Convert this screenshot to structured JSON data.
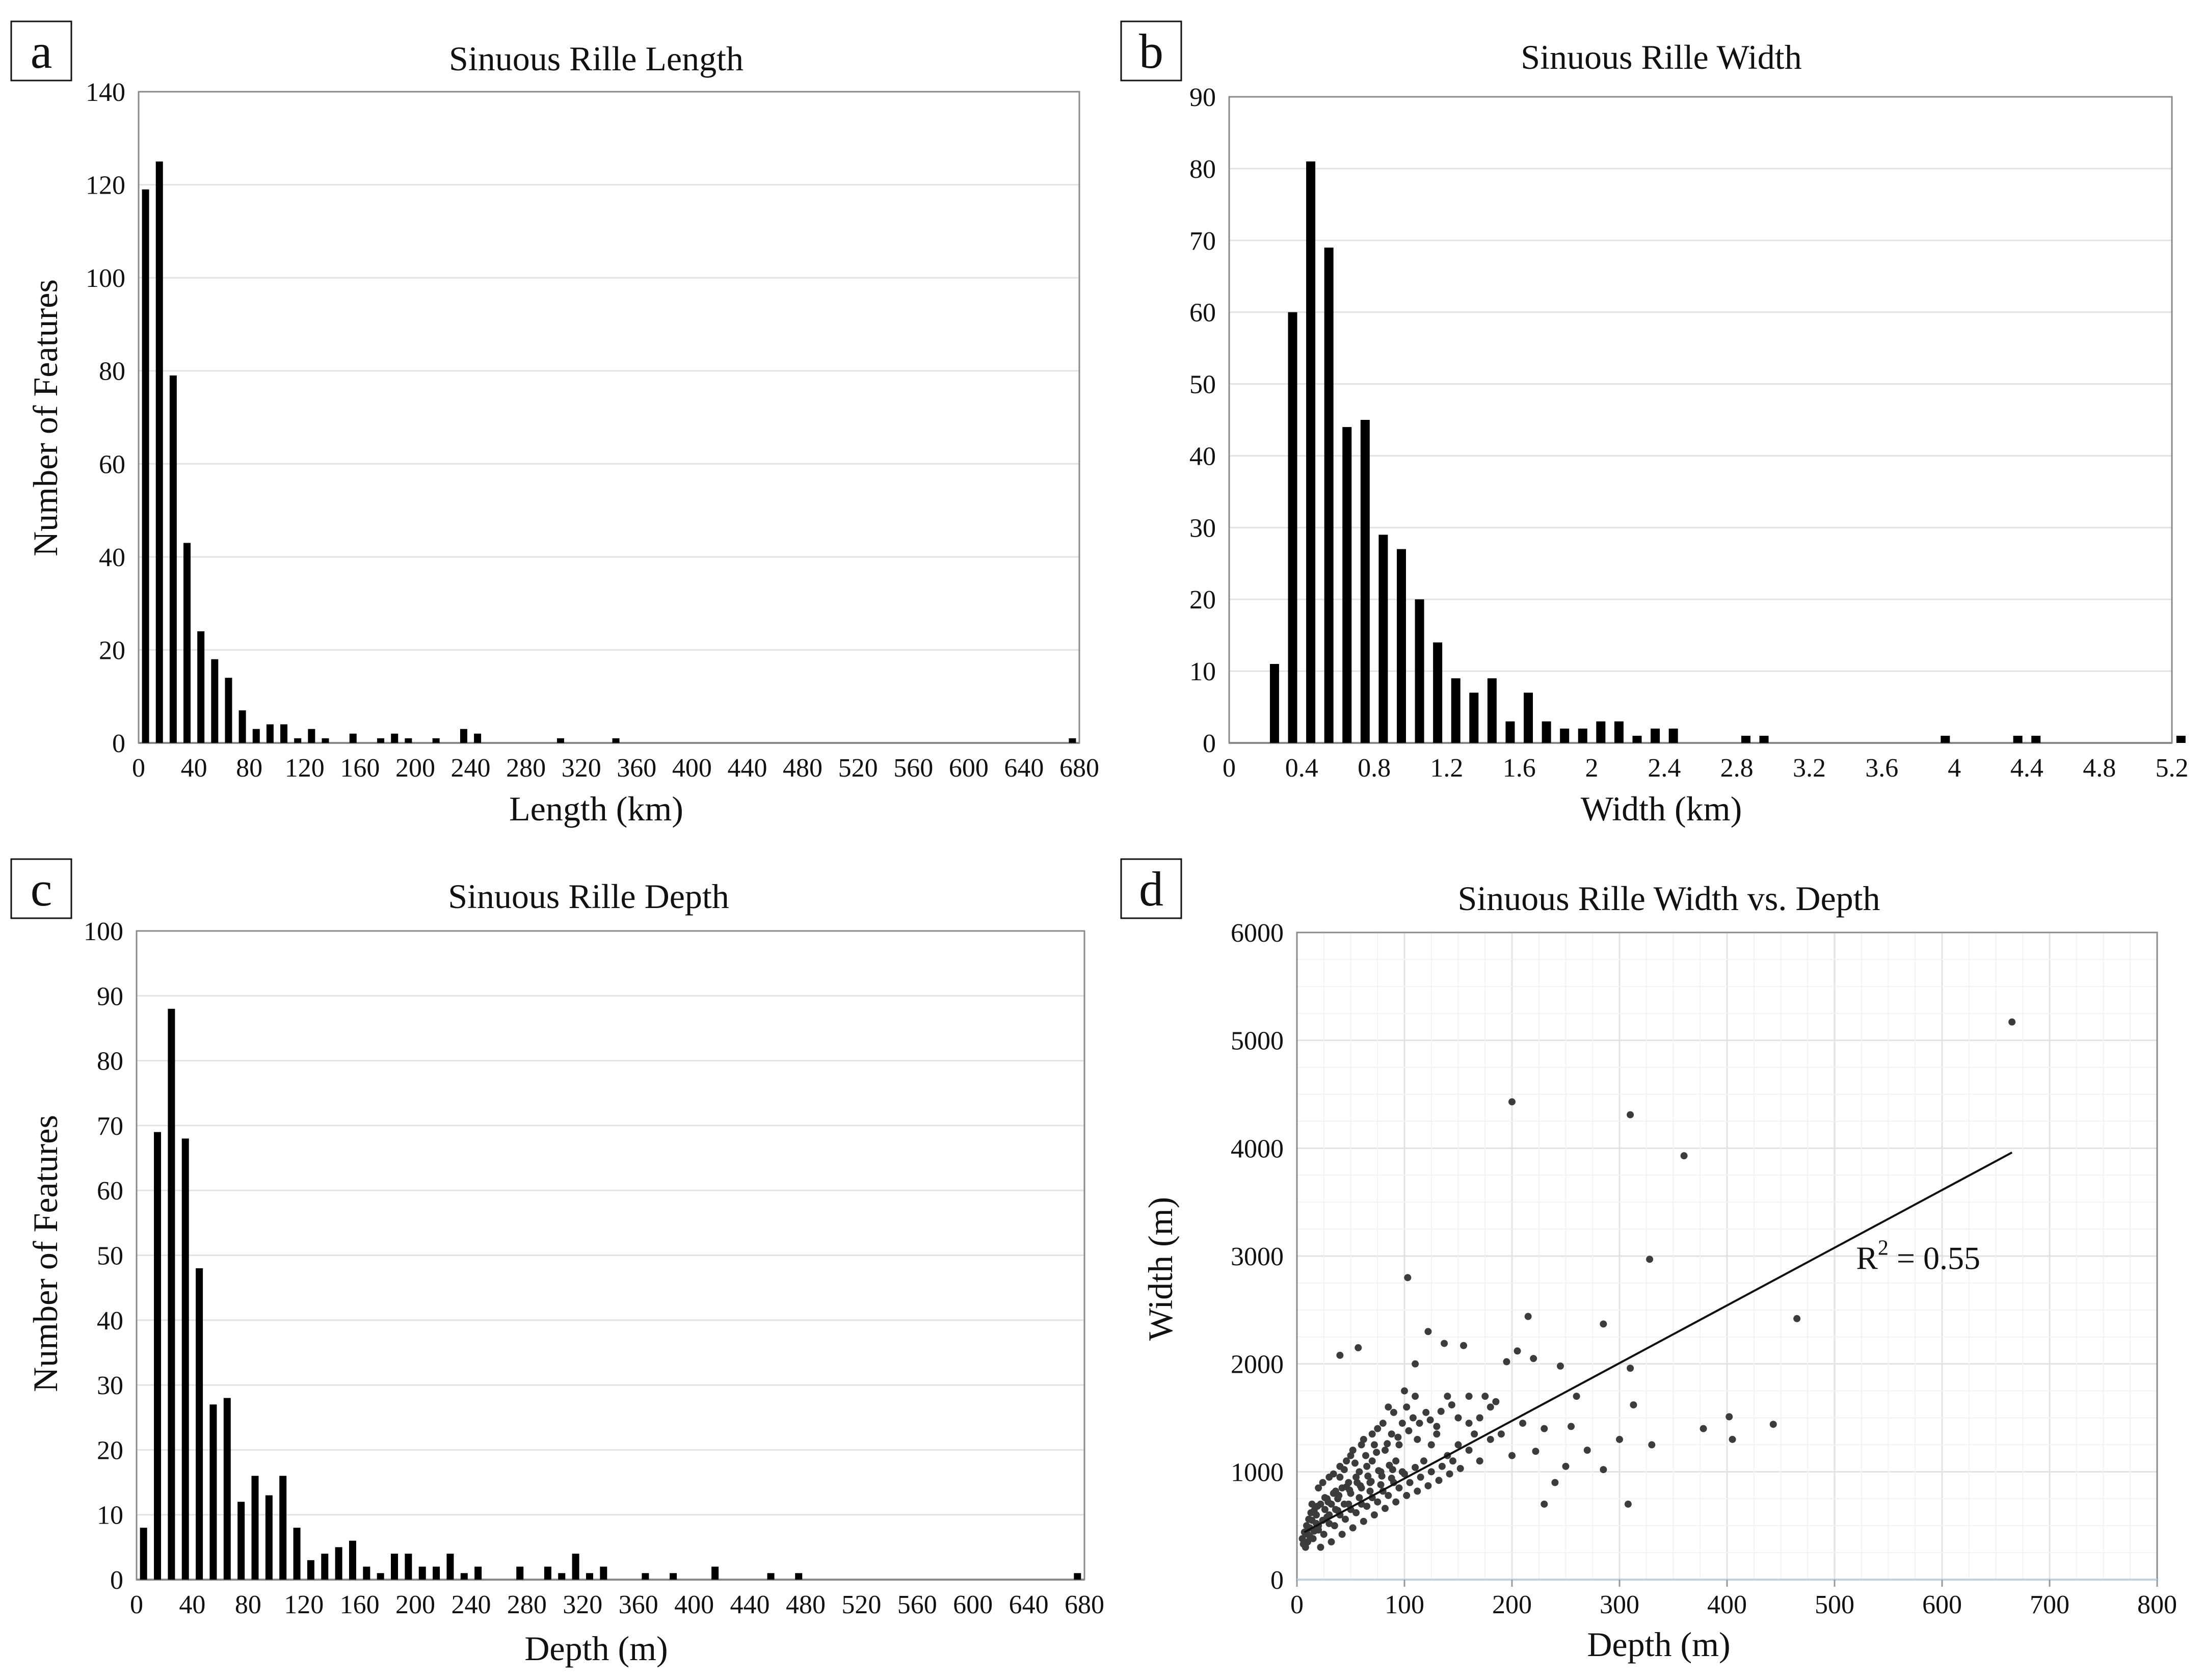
{
  "figure": {
    "description_free": true
  },
  "chart_data": [
    {
      "panel": "a",
      "type": "bar",
      "title": "Sinuous Rille Length",
      "xlabel": "Length (km)",
      "ylabel": "Number of Features",
      "xlim": [
        0,
        680
      ],
      "ylim": [
        0,
        140
      ],
      "xticks": [
        0,
        40,
        80,
        120,
        160,
        200,
        240,
        280,
        320,
        360,
        400,
        440,
        480,
        520,
        560,
        600,
        640,
        680
      ],
      "yticks": [
        0,
        20,
        40,
        60,
        80,
        100,
        120,
        140
      ],
      "grid": true,
      "bin_width": 10,
      "x": [
        5,
        15,
        25,
        35,
        45,
        55,
        65,
        75,
        85,
        95,
        105,
        115,
        125,
        135,
        155,
        175,
        185,
        195,
        215,
        235,
        245,
        305,
        345,
        675
      ],
      "values": [
        119,
        125,
        79,
        43,
        24,
        18,
        14,
        7,
        3,
        4,
        4,
        1,
        3,
        1,
        2,
        1,
        2,
        1,
        1,
        3,
        2,
        1,
        1,
        1
      ]
    },
    {
      "panel": "b",
      "type": "bar",
      "title": "Sinuous Rille Width",
      "xlabel": "Width (km)",
      "ylabel": "",
      "xlim": [
        0,
        5.2
      ],
      "ylim": [
        0,
        90
      ],
      "xticks": [
        "0",
        "0.4",
        "0.8",
        "1.2",
        "1.6",
        "2",
        "2.4",
        "2.8",
        "3.2",
        "3.6",
        "4",
        "4.4",
        "4.8",
        "5.2"
      ],
      "yticks": [
        0,
        10,
        20,
        30,
        40,
        50,
        60,
        70,
        80,
        90
      ],
      "grid": true,
      "bin_width": 0.1,
      "x": [
        0.25,
        0.35,
        0.45,
        0.55,
        0.65,
        0.75,
        0.85,
        0.95,
        1.05,
        1.15,
        1.25,
        1.35,
        1.45,
        1.55,
        1.65,
        1.75,
        1.85,
        1.95,
        2.05,
        2.15,
        2.25,
        2.35,
        2.45,
        2.85,
        2.95,
        3.95,
        4.35,
        4.45,
        5.25
      ],
      "values": [
        11,
        60,
        81,
        69,
        44,
        45,
        29,
        27,
        20,
        14,
        9,
        7,
        9,
        3,
        7,
        3,
        2,
        2,
        3,
        3,
        1,
        2,
        2,
        1,
        1,
        1,
        1,
        1,
        1
      ]
    },
    {
      "panel": "c",
      "type": "bar",
      "title": "Sinuous Rille Depth",
      "xlabel": "Depth (m)",
      "ylabel": "Number of Features",
      "xlim": [
        0,
        680
      ],
      "ylim": [
        0,
        100
      ],
      "xticks": [
        0,
        40,
        80,
        120,
        160,
        200,
        240,
        280,
        320,
        360,
        400,
        440,
        480,
        520,
        560,
        600,
        640,
        680
      ],
      "yticks": [
        0,
        10,
        20,
        30,
        40,
        50,
        60,
        70,
        80,
        90,
        100
      ],
      "grid": true,
      "bin_width": 10,
      "x": [
        5,
        15,
        25,
        35,
        45,
        55,
        65,
        75,
        85,
        95,
        105,
        115,
        125,
        135,
        145,
        155,
        165,
        175,
        185,
        195,
        205,
        215,
        225,
        235,
        245,
        255,
        275,
        295,
        305,
        315,
        325,
        335,
        365,
        385,
        415,
        455,
        475,
        675
      ],
      "values": [
        8,
        69,
        88,
        68,
        48,
        27,
        28,
        12,
        16,
        13,
        16,
        8,
        3,
        4,
        5,
        6,
        2,
        1,
        4,
        4,
        2,
        2,
        4,
        1,
        2,
        0,
        2,
        2,
        1,
        4,
        1,
        2,
        1,
        1,
        2,
        1,
        1,
        1
      ]
    },
    {
      "panel": "d",
      "type": "scatter",
      "title": "Sinuous Rille Width vs. Depth",
      "xlabel": "Depth (m)",
      "ylabel": "Width (m)",
      "xlim": [
        0,
        800
      ],
      "ylim": [
        0,
        6000
      ],
      "xticks": [
        0,
        100,
        200,
        300,
        400,
        500,
        600,
        700,
        800
      ],
      "yticks": [
        0,
        1000,
        2000,
        3000,
        4000,
        5000,
        6000
      ],
      "grid": true,
      "trendline": {
        "x": [
          7,
          665
        ],
        "y": [
          440,
          3960
        ]
      },
      "annotation": {
        "text": "R",
        "superscript": "2",
        "suffix": " = 0.55",
        "x": 520,
        "y": 2880
      },
      "points": [
        [
          200,
          4430
        ],
        [
          310,
          4310
        ],
        [
          360,
          3930
        ],
        [
          665,
          5170
        ],
        [
          328,
          2970
        ],
        [
          103,
          2800
        ],
        [
          465,
          2420
        ],
        [
          215,
          2440
        ],
        [
          285,
          2370
        ],
        [
          57,
          2150
        ],
        [
          137,
          2190
        ],
        [
          155,
          2170
        ],
        [
          40,
          2080
        ],
        [
          205,
          2120
        ],
        [
          220,
          2050
        ],
        [
          245,
          1980
        ],
        [
          195,
          2020
        ],
        [
          122,
          2300
        ],
        [
          110,
          2000
        ],
        [
          310,
          1960
        ],
        [
          313,
          1620
        ],
        [
          402,
          1510
        ],
        [
          443,
          1440
        ],
        [
          405,
          1300
        ],
        [
          378,
          1400
        ],
        [
          308,
          700
        ],
        [
          330,
          1250
        ],
        [
          300,
          1300
        ],
        [
          285,
          1020
        ],
        [
          230,
          700
        ],
        [
          250,
          1050
        ],
        [
          270,
          1200
        ],
        [
          255,
          1420
        ],
        [
          222,
          1190
        ],
        [
          210,
          1450
        ],
        [
          190,
          1350
        ],
        [
          180,
          1600
        ],
        [
          175,
          1700
        ],
        [
          185,
          1650
        ],
        [
          160,
          1200
        ],
        [
          165,
          1350
        ],
        [
          150,
          1500
        ],
        [
          140,
          1700
        ],
        [
          130,
          1420
        ],
        [
          125,
          1250
        ],
        [
          118,
          1100
        ],
        [
          112,
          1300
        ],
        [
          108,
          1500
        ],
        [
          102,
          1600
        ],
        [
          98,
          1450
        ],
        [
          95,
          1250
        ],
        [
          92,
          1100
        ],
        [
          88,
          1350
        ],
        [
          85,
          1600
        ],
        [
          82,
          1200
        ],
        [
          78,
          1000
        ],
        [
          75,
          1400
        ],
        [
          72,
          1250
        ],
        [
          70,
          1100
        ],
        [
          68,
          900
        ],
        [
          65,
          1050
        ],
        [
          62,
          1300
        ],
        [
          60,
          850
        ],
        [
          58,
          1000
        ],
        [
          55,
          950
        ],
        [
          52,
          1200
        ],
        [
          50,
          800
        ],
        [
          48,
          900
        ],
        [
          46,
          1100
        ],
        [
          44,
          700
        ],
        [
          42,
          850
        ],
        [
          40,
          950
        ],
        [
          38,
          750
        ],
        [
          36,
          650
        ],
        [
          34,
          800
        ],
        [
          32,
          700
        ],
        [
          30,
          600
        ],
        [
          28,
          750
        ],
        [
          26,
          650
        ],
        [
          24,
          550
        ],
        [
          22,
          700
        ],
        [
          20,
          500
        ],
        [
          18,
          600
        ],
        [
          16,
          450
        ],
        [
          14,
          550
        ],
        [
          12,
          400
        ],
        [
          10,
          350
        ],
        [
          8,
          300
        ],
        [
          15,
          380
        ],
        [
          25,
          420
        ],
        [
          35,
          500
        ],
        [
          45,
          560
        ],
        [
          55,
          620
        ],
        [
          65,
          680
        ],
        [
          75,
          720
        ],
        [
          85,
          780
        ],
        [
          95,
          850
        ],
        [
          105,
          900
        ],
        [
          115,
          950
        ],
        [
          125,
          1000
        ],
        [
          135,
          1050
        ],
        [
          145,
          1100
        ],
        [
          60,
          700
        ],
        [
          70,
          760
        ],
        [
          80,
          820
        ],
        [
          90,
          900
        ],
        [
          100,
          980
        ],
        [
          110,
          1040
        ],
        [
          40,
          600
        ],
        [
          50,
          650
        ],
        [
          30,
          520
        ],
        [
          20,
          460
        ],
        [
          10,
          420
        ],
        [
          5,
          380
        ],
        [
          12,
          480
        ],
        [
          18,
          520
        ],
        [
          28,
          580
        ],
        [
          38,
          640
        ],
        [
          48,
          700
        ],
        [
          58,
          760
        ],
        [
          68,
          820
        ],
        [
          78,
          880
        ],
        [
          88,
          940
        ],
        [
          98,
          1000
        ],
        [
          22,
          300
        ],
        [
          32,
          350
        ],
        [
          42,
          420
        ],
        [
          52,
          480
        ],
        [
          62,
          540
        ],
        [
          72,
          600
        ],
        [
          82,
          660
        ],
        [
          92,
          720
        ],
        [
          102,
          780
        ],
        [
          112,
          820
        ],
        [
          122,
          870
        ],
        [
          132,
          920
        ],
        [
          142,
          980
        ],
        [
          152,
          1030
        ],
        [
          170,
          1100
        ],
        [
          24,
          900
        ],
        [
          34,
          980
        ],
        [
          44,
          1020
        ],
        [
          54,
          1080
        ],
        [
          64,
          1150
        ],
        [
          74,
          1180
        ],
        [
          84,
          1260
        ],
        [
          94,
          1320
        ],
        [
          104,
          1380
        ],
        [
          114,
          1450
        ],
        [
          124,
          1480
        ],
        [
          134,
          1560
        ],
        [
          144,
          1620
        ],
        [
          160,
          1700
        ],
        [
          26,
          760
        ],
        [
          36,
          820
        ],
        [
          46,
          860
        ],
        [
          56,
          900
        ],
        [
          66,
          960
        ],
        [
          76,
          1010
        ],
        [
          86,
          1060
        ],
        [
          16,
          640
        ],
        [
          14,
          700
        ],
        [
          11,
          560
        ],
        [
          9,
          500
        ],
        [
          7,
          440
        ],
        [
          6,
          330
        ],
        [
          13,
          620
        ],
        [
          19,
          680
        ],
        [
          29,
          720
        ],
        [
          39,
          780
        ],
        [
          49,
          830
        ],
        [
          59,
          870
        ],
        [
          69,
          910
        ],
        [
          79,
          960
        ],
        [
          89,
          1020
        ],
        [
          200,
          1150
        ],
        [
          230,
          1400
        ],
        [
          260,
          1700
        ],
        [
          240,
          900
        ],
        [
          180,
          1300
        ],
        [
          170,
          1500
        ],
        [
          160,
          1450
        ],
        [
          150,
          1250
        ],
        [
          140,
          1150
        ],
        [
          130,
          1350
        ],
        [
          120,
          1550
        ],
        [
          110,
          1700
        ],
        [
          100,
          1750
        ],
        [
          90,
          1550
        ],
        [
          80,
          1450
        ],
        [
          70,
          1350
        ],
        [
          60,
          1250
        ],
        [
          50,
          1150
        ],
        [
          40,
          1050
        ],
        [
          30,
          950
        ],
        [
          20,
          850
        ]
      ]
    }
  ],
  "panels": [
    {
      "label": "a"
    },
    {
      "label": "b"
    },
    {
      "label": "c"
    },
    {
      "label": "d"
    }
  ]
}
